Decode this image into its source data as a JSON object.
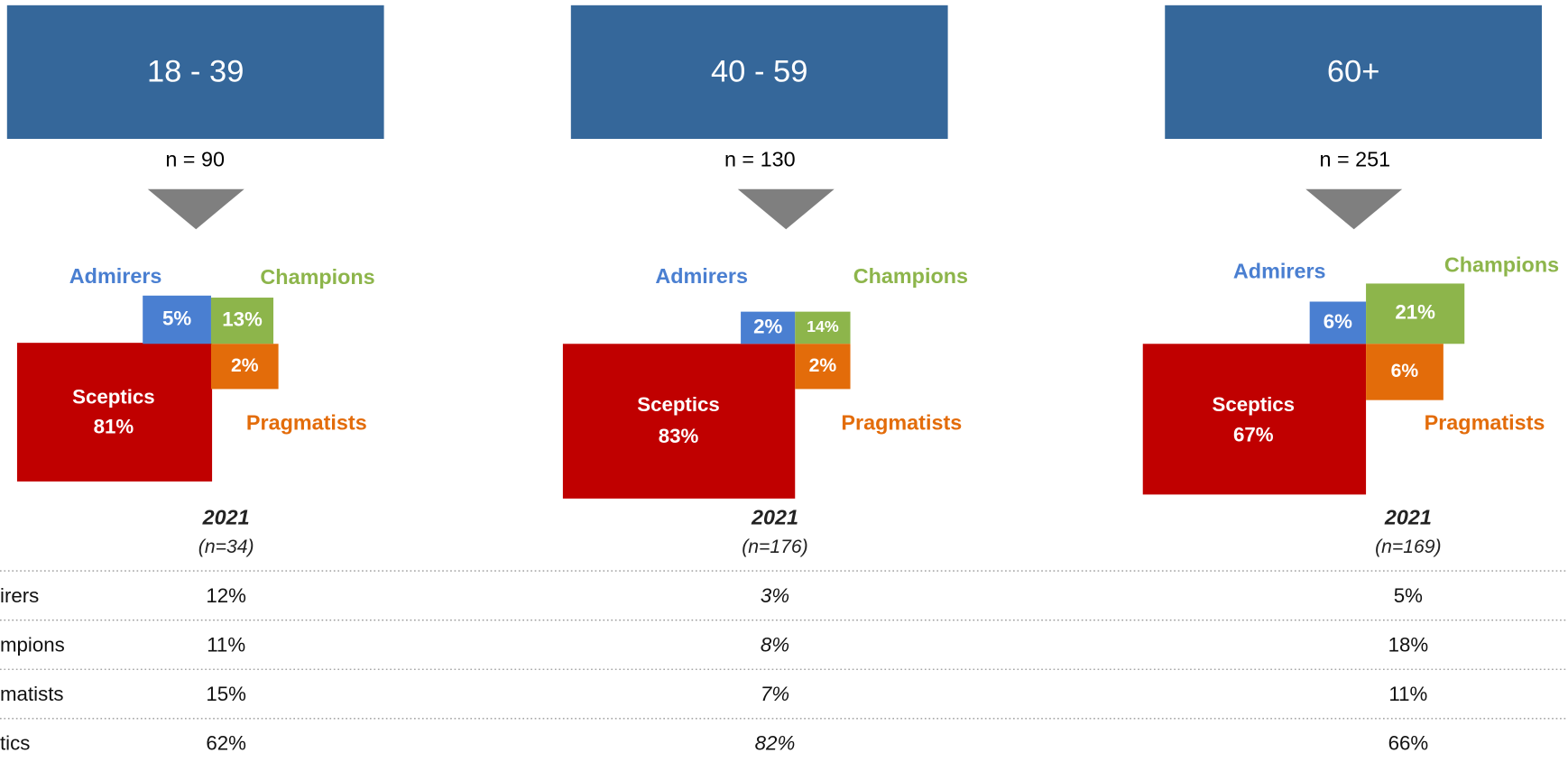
{
  "row_labels": [
    "irers",
    "mpions",
    "matists",
    "tics"
  ],
  "panels": [
    {
      "title": "18 - 39",
      "n": "n = 90",
      "admirers_label": "Admirers",
      "admirers": "5%",
      "champions_label": "Champions",
      "champions": "13%",
      "pragmatists_label": "Pragmatists",
      "pragmatists": "2%",
      "sceptics_label": "Sceptics",
      "sceptics": "81%",
      "year": "2021",
      "year_n": "(n=34)",
      "table": [
        "12%",
        "11%",
        "15%",
        "62%"
      ]
    },
    {
      "title": "40 - 59",
      "n": "n = 130",
      "admirers_label": "Admirers",
      "admirers": "2%",
      "champions_label": "Champions",
      "champions": "14%",
      "pragmatists_label": "Pragmatists",
      "pragmatists": "2%",
      "sceptics_label": "Sceptics",
      "sceptics": "83%",
      "year": "2021",
      "year_n": "(n=176)",
      "table": [
        "3%",
        "8%",
        "7%",
        "82%"
      ]
    },
    {
      "title": "60+",
      "n": "n = 251",
      "admirers_label": "Admirers",
      "admirers": "6%",
      "champions_label": "Champions",
      "champions": "21%",
      "pragmatists_label": "Pragmatists",
      "pragmatists": "6%",
      "sceptics_label": "Sceptics",
      "sceptics": "67%",
      "year": "2021",
      "year_n": "(n=169)",
      "table": [
        "5%",
        "18%",
        "11%",
        "66%"
      ]
    }
  ]
}
